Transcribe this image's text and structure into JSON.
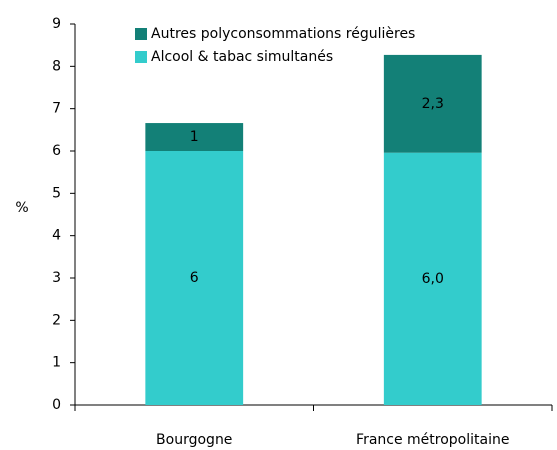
{
  "chart_data": {
    "type": "stacked_bar",
    "ylabel": "%",
    "categories": [
      "Bourgogne",
      "France métropolitaine"
    ],
    "series": [
      {
        "name": "Alcool & tabac simultanés",
        "color": "#33cccc",
        "values": [
          6,
          5.96
        ],
        "value_labels": [
          "6",
          "6,0"
        ]
      },
      {
        "name": "Autres polyconsommations régulières",
        "color": "#138077",
        "values": [
          0.66,
          2.31
        ],
        "value_labels": [
          "1",
          "2,3"
        ]
      }
    ],
    "ylim": [
      0,
      9
    ],
    "yticks": [
      0,
      1,
      2,
      3,
      4,
      5,
      6,
      7,
      8,
      9
    ],
    "legend": "top-left"
  }
}
